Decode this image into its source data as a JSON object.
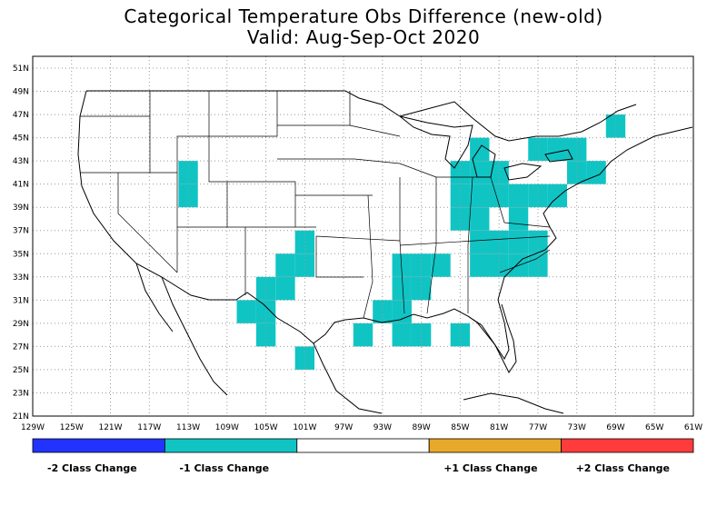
{
  "title": "Categorical Temperature Obs Difference (new-old)",
  "subtitle": "Valid: Aug-Sep-Oct 2020",
  "lat_labels": [
    "51N",
    "49N",
    "47N",
    "45N",
    "43N",
    "41N",
    "39N",
    "37N",
    "35N",
    "33N",
    "31N",
    "29N",
    "27N",
    "25N",
    "23N",
    "21N"
  ],
  "lon_labels": [
    "129W",
    "125W",
    "121W",
    "117W",
    "113W",
    "109W",
    "105W",
    "101W",
    "97W",
    "93W",
    "89W",
    "85W",
    "81W",
    "77W",
    "73W",
    "69W",
    "65W",
    "61W"
  ],
  "legend": [
    {
      "label": "-2 Class Change",
      "color": "#2233ff"
    },
    {
      "label": "-1 Class Change",
      "color": "#11c4c4"
    },
    {
      "label": "",
      "color": "#ffffff"
    },
    {
      "label": "+1 Class Change",
      "color": "#e8a82a"
    },
    {
      "label": "+2 Class Change",
      "color": "#ff3b3b"
    }
  ],
  "changed_cells": {
    "category": "-1 Class Change",
    "grid_deg": 2,
    "cells_lon_lat": [
      [
        -113,
        42
      ],
      [
        -113,
        40
      ],
      [
        -101,
        36
      ],
      [
        -101,
        34
      ],
      [
        -103,
        34
      ],
      [
        -103,
        32
      ],
      [
        -105,
        32
      ],
      [
        -107,
        30
      ],
      [
        -105,
        30
      ],
      [
        -105,
        28
      ],
      [
        -101,
        26
      ],
      [
        -93,
        30
      ],
      [
        -95,
        28
      ],
      [
        -91,
        34
      ],
      [
        -89,
        34
      ],
      [
        -87,
        34
      ],
      [
        -89,
        32
      ],
      [
        -91,
        32
      ],
      [
        -91,
        30
      ],
      [
        -91,
        28
      ],
      [
        -89,
        28
      ],
      [
        -85,
        28
      ],
      [
        -85,
        42
      ],
      [
        -83,
        42
      ],
      [
        -83,
        44
      ],
      [
        -85,
        40
      ],
      [
        -85,
        38
      ],
      [
        -83,
        40
      ],
      [
        -83,
        38
      ],
      [
        -81,
        42
      ],
      [
        -81,
        40
      ],
      [
        -79,
        40
      ],
      [
        -77,
        40
      ],
      [
        -75,
        40
      ],
      [
        -81,
        36
      ],
      [
        -79,
        36
      ],
      [
        -77,
        36
      ],
      [
        -83,
        36
      ],
      [
        -79,
        38
      ],
      [
        -77,
        44
      ],
      [
        -75,
        44
      ],
      [
        -73,
        44
      ],
      [
        -73,
        42
      ],
      [
        -71,
        42
      ],
      [
        -69,
        46
      ],
      [
        -83,
        34
      ],
      [
        -81,
        34
      ],
      [
        -79,
        34
      ],
      [
        -77,
        34
      ]
    ]
  }
}
